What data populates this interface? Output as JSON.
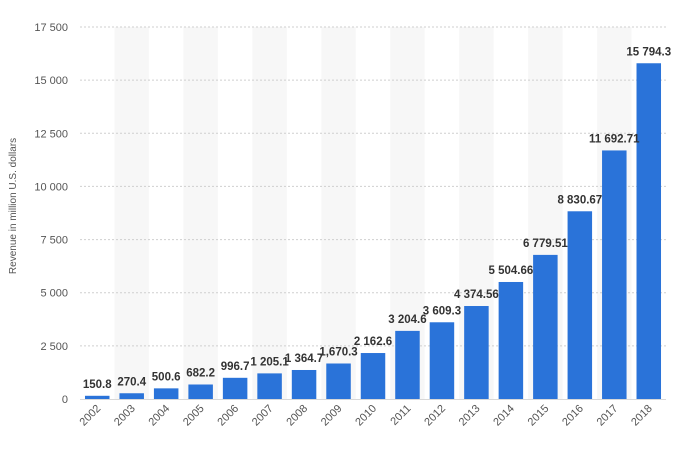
{
  "chart_data": {
    "type": "bar",
    "title": "",
    "xlabel": "",
    "ylabel": "Revenue in million U.S. dollars",
    "ylim": [
      0,
      17500
    ],
    "yticks": [
      0,
      2500,
      5000,
      7500,
      10000,
      12500,
      15000,
      17500
    ],
    "ytick_labels": [
      "0",
      "2 500",
      "5 000",
      "7 500",
      "10 000",
      "12 500",
      "15 000",
      "17 500"
    ],
    "grid": true,
    "legend": "none",
    "bar_color": "#2a73d9",
    "band_color": "#f7f7f7",
    "categories": [
      "2002",
      "2003",
      "2004",
      "2005",
      "2006",
      "2007",
      "2008",
      "2009",
      "2010",
      "2011",
      "2012",
      "2013",
      "2014",
      "2015",
      "2016",
      "2017",
      "2018"
    ],
    "values": [
      150.8,
      270.4,
      500.6,
      682.2,
      996.7,
      1205.1,
      1364.7,
      1670.3,
      2162.6,
      3204.6,
      3609.3,
      4374.56,
      5504.66,
      6779.51,
      8830.67,
      11692.71,
      15794.3
    ],
    "data_labels": [
      "150.8",
      "270.4",
      "500.6",
      "682.2",
      "996.7",
      "1 205.1",
      "1 364.7",
      "1,670.3",
      "2 162.6",
      "3 204.6",
      "3 609.3",
      "4 374.56",
      "5 504.66",
      "6 779.51",
      "8 830.67",
      "11 692.71",
      "15 794.3"
    ]
  }
}
